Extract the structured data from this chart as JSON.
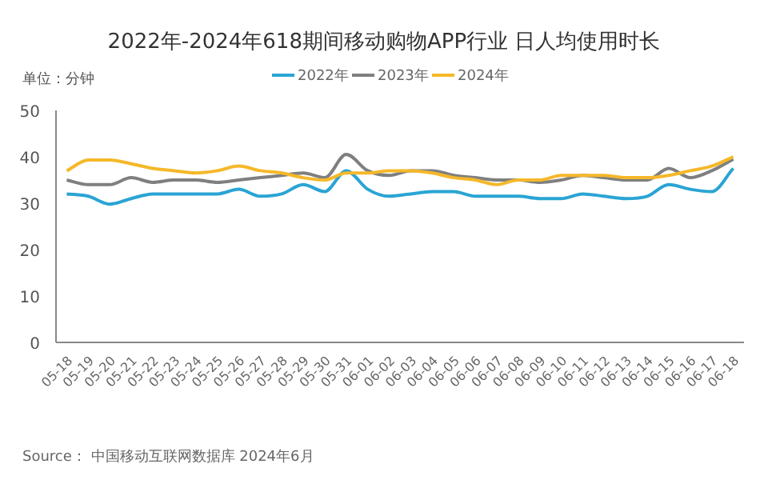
{
  "chart_data": {
    "type": "line",
    "title": "2022年-2024年618期间移动购物APP行业 日人均使用时长",
    "ylabel": "单位：分钟",
    "annotations": [
      "Source： 中国移动互联网数据库 2024年6月"
    ],
    "categories": [
      "05-18",
      "05-19",
      "05-20",
      "05-21",
      "05-22",
      "05-23",
      "05-24",
      "05-25",
      "05-26",
      "05-27",
      "05-28",
      "05-29",
      "05-30",
      "05-31",
      "06-01",
      "06-02",
      "06-03",
      "06-04",
      "06-05",
      "06-06",
      "06-07",
      "06-08",
      "06-09",
      "06-10",
      "06-11",
      "06-12",
      "06-13",
      "06-14",
      "06-15",
      "06-16",
      "06-17",
      "06-18"
    ],
    "series": [
      {
        "name": "2022年",
        "color": "#2aa4d4",
        "values": [
          32,
          31.5,
          29.8,
          31,
          32,
          32,
          32,
          32,
          33,
          31.5,
          32,
          34,
          32.5,
          37,
          33,
          31.5,
          32,
          32.5,
          32.5,
          31.5,
          31.5,
          31.5,
          31,
          31,
          32,
          31.5,
          31,
          31.5,
          34,
          33,
          32.5,
          37.5
        ]
      },
      {
        "name": "2023年",
        "color": "#7f7f7f",
        "values": [
          35,
          34,
          34,
          35.5,
          34.5,
          35,
          35,
          34.5,
          35,
          35.5,
          36,
          36.5,
          35.5,
          40.5,
          37,
          36,
          37,
          37,
          36,
          35.5,
          35,
          35,
          34.5,
          35,
          36,
          35.5,
          35,
          35,
          37.5,
          35.5,
          37,
          39.5
        ]
      },
      {
        "name": "2024年",
        "color": "#f5b82a",
        "values": [
          37,
          39.3,
          39.3,
          38.5,
          37.5,
          37,
          36.5,
          37,
          38,
          37,
          36.5,
          35.5,
          35,
          36.5,
          36.5,
          37,
          37,
          36.5,
          35.5,
          35,
          34,
          35,
          35,
          36,
          36,
          36,
          35.5,
          35.5,
          36,
          37,
          38,
          40
        ]
      }
    ],
    "ylim": [
      0,
      50
    ],
    "yticks": [
      0,
      10,
      20,
      30,
      40,
      50
    ],
    "grid": false,
    "legend": "top",
    "marker": "none",
    "line_style": "solid"
  }
}
